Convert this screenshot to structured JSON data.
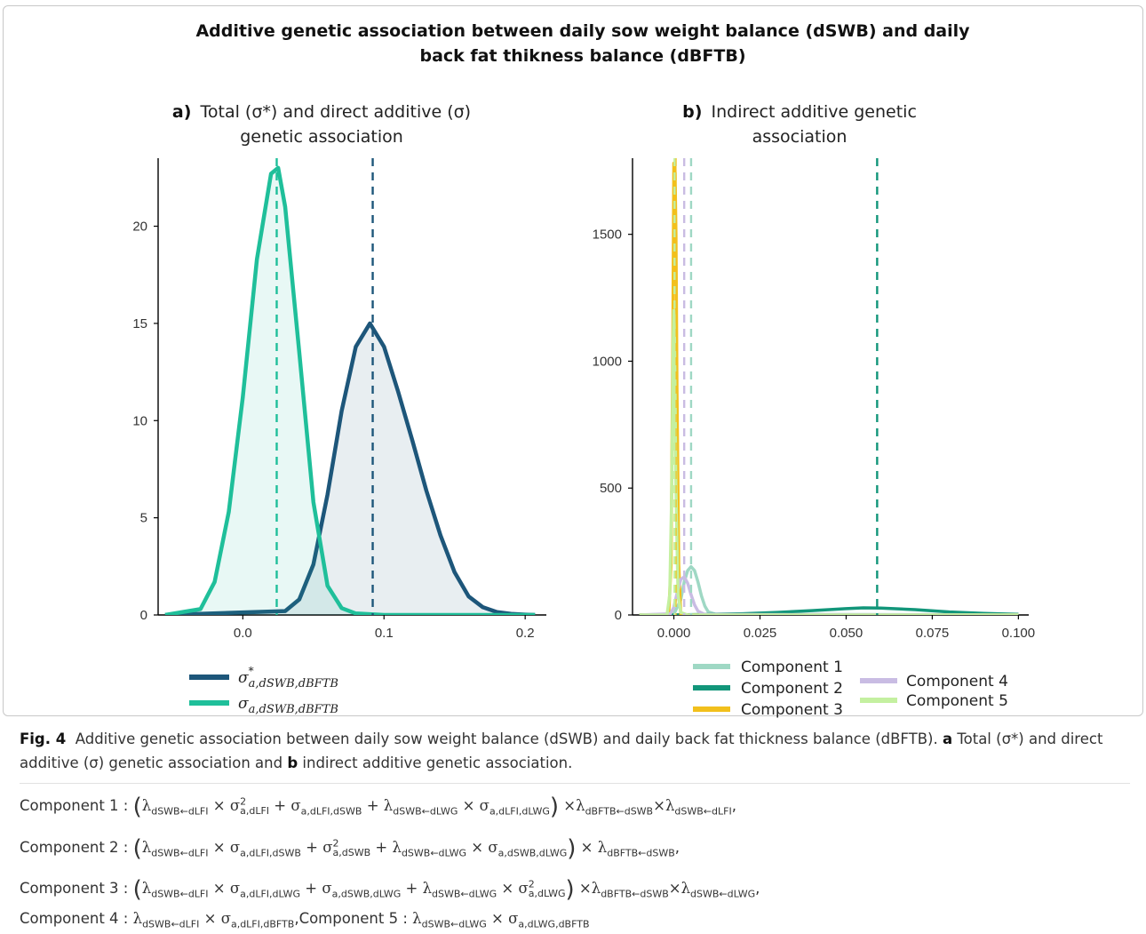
{
  "figure": {
    "title_line1": "Additive genetic association between daily sow weight balance (dSWB) and daily",
    "title_line2": "back fat thikness balance (dBFTB)"
  },
  "colors": {
    "dark_blue": "#1d567a",
    "teal": "#1fbf9a",
    "comp1": "#9fd8c4",
    "comp2": "#12967a",
    "comp3": "#f2c01c",
    "comp4": "#c9bce3",
    "comp5": "#c4f0a0"
  },
  "chart_data": [
    {
      "type": "area",
      "panel_label": "a)",
      "title_line1": "Total (σ*) and direct additive (σ)",
      "title_line2": "genetic association",
      "xlim": [
        -0.06,
        0.215
      ],
      "ylim": [
        0,
        23.5
      ],
      "xticks": [
        0.0,
        0.1,
        0.2
      ],
      "xtick_labels": [
        "0.0",
        "0.1",
        "0.2"
      ],
      "yticks": [
        0,
        5,
        10,
        15,
        20
      ],
      "ytick_labels": [
        "0",
        "5",
        "10",
        "15",
        "20"
      ],
      "series": [
        {
          "name": "σ*a,dSWB,dBFTB",
          "color_key": "dark_blue",
          "vline": 0.092,
          "x": [
            -0.055,
            0.03,
            0.04,
            0.05,
            0.06,
            0.07,
            0.08,
            0.09,
            0.1,
            0.11,
            0.12,
            0.13,
            0.14,
            0.15,
            0.16,
            0.17,
            0.18,
            0.19,
            0.2,
            0.207
          ],
          "y": [
            0,
            0.2,
            0.8,
            2.6,
            6.2,
            10.5,
            13.8,
            15.0,
            13.8,
            11.5,
            9.0,
            6.4,
            4.1,
            2.2,
            0.95,
            0.4,
            0.15,
            0.06,
            0.02,
            0
          ]
        },
        {
          "name": "σa,dSWB,dBFTB",
          "color_key": "teal",
          "vline": 0.024,
          "x": [
            -0.055,
            -0.03,
            -0.02,
            -0.01,
            0.0,
            0.01,
            0.02,
            0.025,
            0.03,
            0.04,
            0.05,
            0.06,
            0.07,
            0.08,
            0.1,
            0.207
          ],
          "y": [
            0,
            0.3,
            1.7,
            5.3,
            11.2,
            18.3,
            22.7,
            23.0,
            21.0,
            13.5,
            5.8,
            1.5,
            0.35,
            0.08,
            0.0,
            0
          ]
        }
      ],
      "legend": [
        {
          "label": "σ*a,dSWB,dBFTB",
          "sym": "σ",
          "sup": "*",
          "sub": "a,dSWB,dBFTB",
          "color_key": "dark_blue"
        },
        {
          "label": "σa,dSWB,dBFTB",
          "sym": "σ",
          "sup": "",
          "sub": "a,dSWB,dBFTB",
          "color_key": "teal"
        }
      ]
    },
    {
      "type": "line",
      "panel_label": "b)",
      "title_line1": "Indirect additive genetic",
      "title_line2": "association",
      "xlim": [
        -0.012,
        0.103
      ],
      "ylim": [
        0,
        1800
      ],
      "xticks": [
        0.0,
        0.025,
        0.05,
        0.075,
        0.1
      ],
      "xtick_labels": [
        "0.000",
        "0.025",
        "0.050",
        "0.075",
        "0.100"
      ],
      "yticks": [
        0,
        500,
        1000,
        1500
      ],
      "ytick_labels": [
        "0",
        "500",
        "1000",
        "1500"
      ],
      "series": [
        {
          "name": "Component 1",
          "color_key": "comp1",
          "vline": 0.005,
          "x": [
            -0.01,
            0.0,
            0.002,
            0.003,
            0.004,
            0.005,
            0.006,
            0.007,
            0.008,
            0.009,
            0.01,
            0.012,
            0.1
          ],
          "y": [
            0,
            3,
            60,
            130,
            175,
            190,
            175,
            130,
            75,
            35,
            12,
            3,
            0
          ]
        },
        {
          "name": "Component 2",
          "color_key": "comp2",
          "vline": 0.059,
          "x": [
            -0.01,
            0.0,
            0.01,
            0.02,
            0.03,
            0.04,
            0.05,
            0.055,
            0.06,
            0.07,
            0.08,
            0.09,
            0.1
          ],
          "y": [
            0,
            0.5,
            2,
            5,
            10,
            17,
            25,
            28,
            27,
            21,
            12,
            6,
            2.5
          ]
        },
        {
          "name": "Component 3",
          "color_key": "comp3",
          "vline": 0.0005,
          "x": [
            -0.01,
            -0.0015,
            -0.0008,
            -0.0003,
            0.0,
            0.0003,
            0.0006,
            0.0009,
            0.0014,
            0.002,
            0.1
          ],
          "y": [
            0,
            0,
            200,
            1100,
            1780,
            1780,
            1500,
            900,
            200,
            0,
            0
          ]
        },
        {
          "name": "Component 4",
          "color_key": "comp4",
          "vline": 0.003,
          "x": [
            -0.01,
            -0.001,
            0.0,
            0.001,
            0.002,
            0.003,
            0.004,
            0.005,
            0.006,
            0.007,
            0.009,
            0.1
          ],
          "y": [
            0,
            5,
            30,
            90,
            140,
            150,
            125,
            80,
            40,
            15,
            2,
            0
          ]
        },
        {
          "name": "Component 5",
          "color_key": "comp5",
          "vline": 0.0002,
          "x": [
            -0.01,
            -0.002,
            -0.0012,
            -0.0006,
            -0.0002,
            0.0,
            0.0002,
            0.0006,
            0.0012,
            0.002,
            0.004,
            0.1
          ],
          "y": [
            0,
            0,
            80,
            500,
            1080,
            1200,
            1080,
            500,
            80,
            10,
            0,
            0
          ]
        }
      ],
      "legend_left": [
        {
          "label": "Component 1",
          "color_key": "comp1"
        },
        {
          "label": "Component 2",
          "color_key": "comp2"
        },
        {
          "label": "Component 3",
          "color_key": "comp3"
        }
      ],
      "legend_right": [
        {
          "label": "Component 4",
          "color_key": "comp4"
        },
        {
          "label": "Component 5",
          "color_key": "comp5"
        }
      ]
    }
  ],
  "caption": {
    "fig_label": "Fig. 4",
    "text_1": "Additive genetic association between daily sow weight balance (dSWB) and daily back fat thickness balance (dBFTB). ",
    "bold_a": "a",
    "text_2": " Total (σ*) and direct additive (σ) genetic association and ",
    "bold_b": "b",
    "text_3": " indirect additive genetic association."
  },
  "formulas": {
    "c1": {
      "label": "Component 1 :",
      "sym_lambda": "λ",
      "sym_sigma": "σ",
      "sym_sq": "2",
      "s_dswb_dlfi": "dSWB←dLFI",
      "s_dlfi": "a,dLFI",
      "s_dlfi_dswb": "a,dLFI,dSWB",
      "s_dswb_dlwg": "dSWB←dLWG",
      "s_dlfi_dlwg": "a,dLFI,dLWG",
      "s_dbftb_dswb": "dBFTB←dSWB",
      "s_dswb_dlfi_end": "dSWB←dLFI",
      "op_times": "×",
      "op_plus": "+",
      "sep": ","
    },
    "c2": {
      "label": "Component 2 :",
      "sym_lambda": "λ",
      "sym_sigma": "σ",
      "sym_sq": "2",
      "s_dswb_dlfi": "dSWB←dLFI",
      "s_dlfi_dswb": "a,dLFI,dSWB",
      "s_dswb": "a,dSWB",
      "s_dswb_dlwg": "dSWB←dLWG",
      "s_dswb_dlwg_sig": "a,dSWB,dLWG",
      "s_dbftb_dswb": "dBFTB←dSWB",
      "op_times": "×",
      "op_plus": "+",
      "sep": ","
    },
    "c3": {
      "label": "Component 3 :",
      "sym_lambda": "λ",
      "sym_sigma": "σ",
      "sym_sq": "2",
      "s_dswb_dlfi": "dSWB←dLFI",
      "s_dlfi_dlwg": "a,dLFI,dLWG",
      "s_dswb_dlwg_sig": "a,dSWB,dLWG",
      "s_dswb_dlwg": "dSWB←dLWG",
      "s_dlwg": "a,dLWG",
      "s_dbftb_dswb": "dBFTB←dSWB",
      "s_dswb_dlwg_end": "dSWB←dLWG",
      "op_times": "×",
      "op_plus": "+",
      "sep": ","
    },
    "c45": {
      "label4": "Component 4 :",
      "label5": "Component 5 :",
      "sym_lambda": "λ",
      "sym_sigma": "σ",
      "s_dswb_dlfi": "dSWB←dLFI",
      "s_dlfi_dbftb": "a,dLFI,dBFTB",
      "s_dswb_dlwg": "dSWB←dLWG",
      "s_dlwg_dbftb": "a,dLWG,dBFTB",
      "op_times": "×",
      "sep": ","
    }
  }
}
